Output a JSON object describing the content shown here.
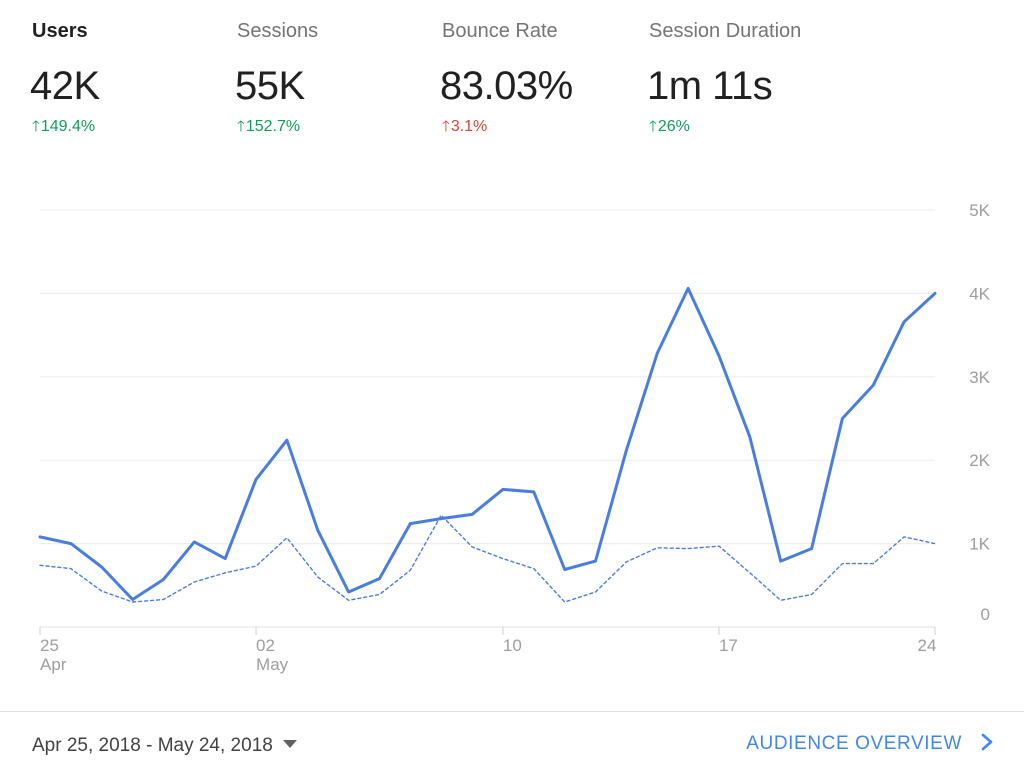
{
  "metrics": [
    {
      "label": "Users",
      "value": "42K",
      "change": "149.4%",
      "direction": "up",
      "sentiment": "good",
      "active": true
    },
    {
      "label": "Sessions",
      "value": "55K",
      "change": "152.7%",
      "direction": "up",
      "sentiment": "good",
      "active": false
    },
    {
      "label": "Bounce Rate",
      "value": "83.03%",
      "change": "3.1%",
      "direction": "up",
      "sentiment": "bad",
      "active": false
    },
    {
      "label": "Session Duration",
      "value": "1m 11s",
      "change": "26%",
      "direction": "up",
      "sentiment": "good",
      "active": false
    }
  ],
  "icons": {
    "change_arrow": "arrow-up-icon",
    "date_dropdown": "caret-down-icon",
    "audience_link": "chevron-right-icon"
  },
  "colors": {
    "positive": "#0f9d58",
    "negative": "#db4437",
    "series": "#4a7de2",
    "link": "#4285f4"
  },
  "footer": {
    "date_range": "Apr 25, 2018 - May 24, 2018",
    "link_label": "AUDIENCE OVERVIEW"
  },
  "chart_data": {
    "type": "line",
    "title": "",
    "xlabel": "",
    "ylabel": "",
    "x": [
      "Apr 25",
      "Apr 26",
      "Apr 27",
      "Apr 28",
      "Apr 29",
      "Apr 30",
      "May 01",
      "May 02",
      "May 03",
      "May 04",
      "May 05",
      "May 06",
      "May 07",
      "May 08",
      "May 09",
      "May 10",
      "May 11",
      "May 12",
      "May 13",
      "May 14",
      "May 15",
      "May 16",
      "May 17",
      "May 18",
      "May 19",
      "May 20",
      "May 21",
      "May 22",
      "May 23",
      "May 24"
    ],
    "x_ticks": [
      {
        "index": 0,
        "line1": "25",
        "line2": "Apr"
      },
      {
        "index": 7,
        "line1": "02",
        "line2": "May"
      },
      {
        "index": 15,
        "line1": "10",
        "line2": ""
      },
      {
        "index": 22,
        "line1": "17",
        "line2": ""
      },
      {
        "index": 29,
        "line1": "24",
        "line2": ""
      }
    ],
    "y_ticks": [
      {
        "value": 0,
        "label": "0"
      },
      {
        "value": 1000,
        "label": "1K"
      },
      {
        "value": 2000,
        "label": "2K"
      },
      {
        "value": 3000,
        "label": "3K"
      },
      {
        "value": 4000,
        "label": "4K"
      },
      {
        "value": 5000,
        "label": "5K"
      }
    ],
    "ylim": [
      0,
      5000
    ],
    "grid": true,
    "series": [
      {
        "style": "solid",
        "values": [
          1080,
          1000,
          720,
          330,
          570,
          1020,
          820,
          1770,
          2240,
          1160,
          420,
          580,
          1240,
          1300,
          1350,
          1650,
          1620,
          690,
          790,
          2120,
          3280,
          4060,
          3250,
          2280,
          790,
          940,
          2500,
          2900,
          3660,
          4000
        ]
      },
      {
        "style": "dashed",
        "values": [
          740,
          700,
          430,
          300,
          330,
          540,
          650,
          730,
          1070,
          600,
          320,
          390,
          680,
          1340,
          960,
          820,
          700,
          300,
          420,
          780,
          950,
          940,
          970,
          650,
          320,
          390,
          760,
          760,
          1080,
          1000
        ]
      }
    ]
  }
}
